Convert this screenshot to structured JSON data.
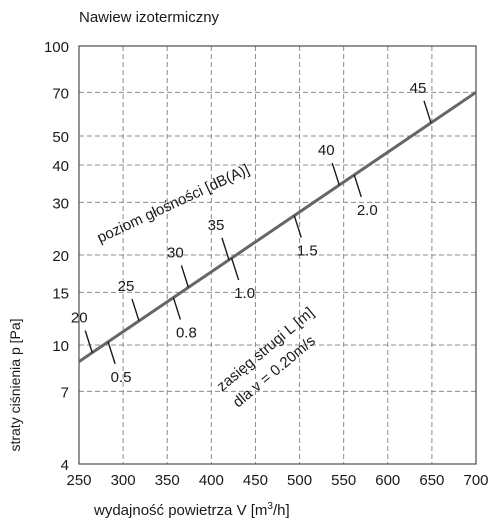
{
  "chart_data": {
    "type": "line",
    "title": "Nawiew izotermiczny",
    "xlabel": "wydajność powietrza V [m³/h]",
    "xlabel_main": "wydajność powietrza V [m",
    "xlabel_sup": "3",
    "xlabel_end": "/h]",
    "ylabel": "straty ciśnienia p [Pa]",
    "xlim": [
      250,
      700
    ],
    "ylim": [
      4,
      100
    ],
    "yscale": "log",
    "grid": true,
    "x_ticks": [
      250,
      300,
      350,
      400,
      450,
      500,
      550,
      600,
      650,
      700
    ],
    "x_tick_labels": [
      "250",
      "300",
      "350",
      "400",
      "450",
      "500",
      "550",
      "600",
      "650",
      "700"
    ],
    "y_ticks": [
      4,
      7,
      10,
      15,
      20,
      30,
      40,
      50,
      70,
      100
    ],
    "y_tick_labels": [
      "4",
      "7",
      "10",
      "15",
      "20",
      "30",
      "40",
      "50",
      "70",
      "100"
    ],
    "series": [
      {
        "x": [
          250,
          700
        ],
        "y": [
          8.8,
          70
        ],
        "color": "#666666"
      }
    ],
    "noise_marks": [
      {
        "label": "20",
        "x": 265
      },
      {
        "label": "25",
        "x": 318
      },
      {
        "label": "30",
        "x": 374
      },
      {
        "label": "35",
        "x": 420
      },
      {
        "label": "40",
        "x": 545
      },
      {
        "label": "45",
        "x": 649
      }
    ],
    "range_marks": [
      {
        "label": "0.5",
        "x": 283
      },
      {
        "label": "0.8",
        "x": 357
      },
      {
        "label": "1.0",
        "x": 423
      },
      {
        "label": "1.5",
        "x": 494
      },
      {
        "label": "2.0",
        "x": 562
      }
    ],
    "annotations": {
      "noise": "poziom głośności [dB(A)]",
      "range_line1": "zasięg strugi L [m]",
      "range_line2": "dla v = 0.20m/s"
    }
  }
}
